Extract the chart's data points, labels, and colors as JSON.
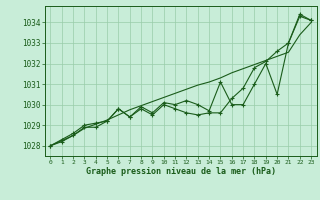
{
  "title": "Graphe pression niveau de la mer (hPa)",
  "xlabel_hours": [
    0,
    1,
    2,
    3,
    4,
    5,
    6,
    7,
    8,
    9,
    10,
    11,
    12,
    13,
    14,
    15,
    16,
    17,
    18,
    19,
    20,
    21,
    22,
    23
  ],
  "ylim": [
    1027.5,
    1034.8
  ],
  "yticks": [
    1028,
    1029,
    1030,
    1031,
    1032,
    1033,
    1034
  ],
  "background_color": "#c8edd8",
  "grid_color": "#99ccaa",
  "line_color": "#1a5c1a",
  "line1": [
    1028.0,
    1028.3,
    1028.6,
    1029.0,
    1029.1,
    1029.2,
    1029.8,
    1029.4,
    1029.9,
    1029.6,
    1030.1,
    1030.0,
    1030.2,
    1030.0,
    1029.7,
    1031.1,
    1030.0,
    1030.0,
    1031.0,
    1032.0,
    1030.5,
    1033.0,
    1034.4,
    1034.1
  ],
  "line2": [
    1028.0,
    1028.2,
    1028.5,
    1028.9,
    1028.9,
    1029.2,
    1029.8,
    1029.4,
    1029.8,
    1029.5,
    1030.0,
    1029.8,
    1029.6,
    1029.5,
    1029.6,
    1029.6,
    1030.3,
    1030.8,
    1031.8,
    1032.1,
    1032.6,
    1033.0,
    1034.3,
    1034.1
  ],
  "line3": [
    1028.0,
    1028.25,
    1028.5,
    1028.85,
    1029.05,
    1029.25,
    1029.5,
    1029.75,
    1029.95,
    1030.15,
    1030.35,
    1030.55,
    1030.75,
    1030.95,
    1031.1,
    1031.3,
    1031.55,
    1031.75,
    1031.95,
    1032.15,
    1032.35,
    1032.55,
    1033.4,
    1034.0
  ]
}
